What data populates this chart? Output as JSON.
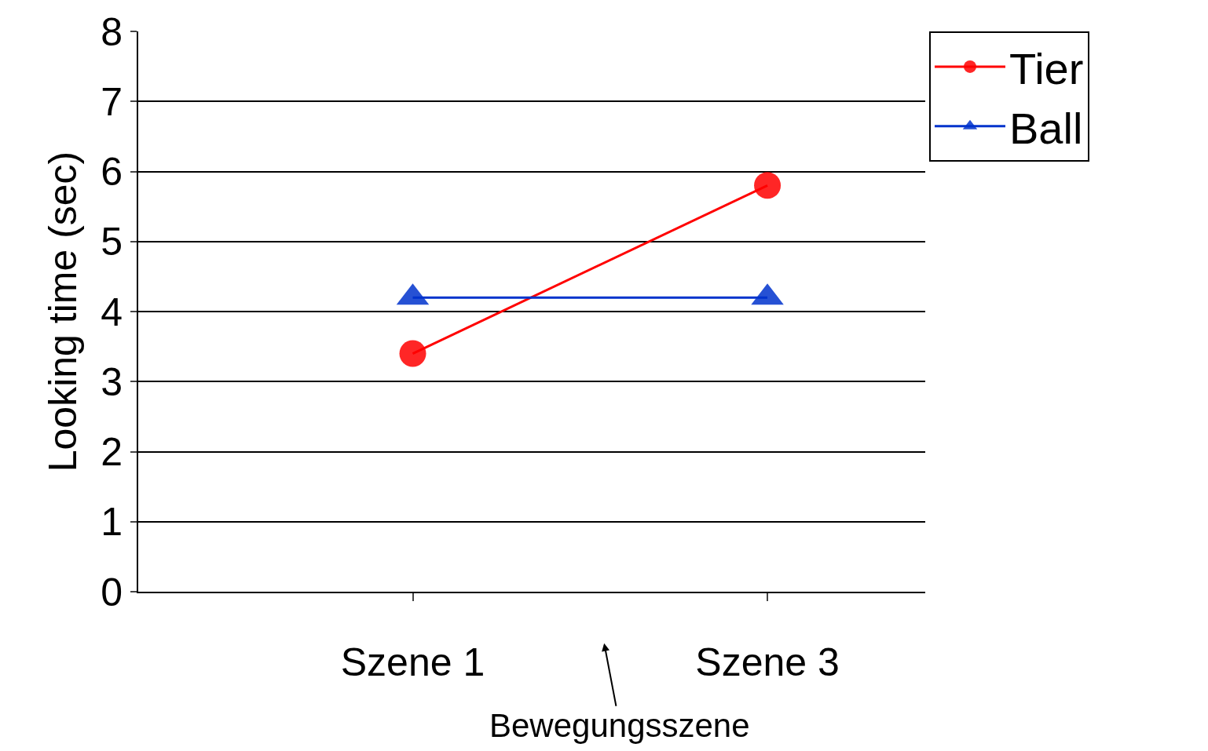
{
  "chart_data": {
    "type": "line",
    "ylabel": "Looking time (sec)",
    "categories": [
      "Szene 1",
      "Szene 3"
    ],
    "series": [
      {
        "name": "Tier",
        "color": "#ff0000",
        "marker": "circle",
        "values": [
          3.4,
          5.8
        ]
      },
      {
        "name": "Ball",
        "color": "#0033cc",
        "marker": "triangle",
        "values": [
          4.2,
          4.2
        ]
      }
    ],
    "ylim": [
      0,
      8
    ],
    "yticks": [
      0,
      1,
      2,
      3,
      4,
      5,
      6,
      7,
      8
    ],
    "grid": "y",
    "legend": "top right",
    "line_style": "solid",
    "annotations": [
      "Bewegungsszene"
    ]
  }
}
